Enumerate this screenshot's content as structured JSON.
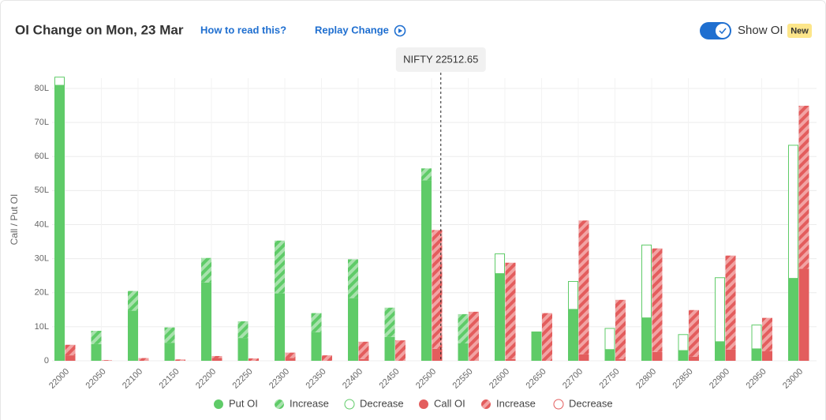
{
  "chart_data": {
    "type": "stacked-bar",
    "title": "OI Change on Mon, 23 Mar",
    "links": [
      "How to read this?",
      "Replay Change"
    ],
    "toggle": "Show OI",
    "badge": "New",
    "spot": {
      "value": 22512.65,
      "label": "NIFTY 22512.65"
    },
    "y_label": "Call / Put OI",
    "categories": [
      "22000",
      "22050",
      "22100",
      "22150",
      "22200",
      "22250",
      "22300",
      "22350",
      "22400",
      "22450",
      "22500",
      "22550",
      "22600",
      "22650",
      "22700",
      "22750",
      "22800",
      "22850",
      "22900",
      "22950",
      "23000"
    ],
    "series": [
      {
        "name": "Put OI",
        "group": "put",
        "style": "solid",
        "color": "#5fcb68",
        "values": [
          80.9,
          4.9,
          14.7,
          5.3,
          23,
          6.7,
          19.8,
          8.4,
          18.4,
          7,
          53,
          5.1,
          25.6,
          8.6,
          15.1,
          3.3,
          12.6,
          3,
          5.6,
          3.5,
          24.2
        ]
      },
      {
        "name": "Increase",
        "group": "put",
        "style": "hatch",
        "color": "#5fcb68",
        "values": [
          0,
          3.9,
          5.8,
          4.5,
          7.2,
          4.9,
          15.5,
          5.6,
          11.4,
          8.6,
          3.5,
          8.6,
          0,
          0,
          0,
          0,
          0,
          0,
          0,
          0,
          0
        ]
      },
      {
        "name": "Decrease",
        "group": "put",
        "style": "outline",
        "color": "#5fcb68",
        "values": [
          2.4,
          0,
          0,
          0,
          0,
          0,
          0,
          0,
          0,
          0,
          0,
          0,
          5.8,
          0,
          8.2,
          6.2,
          21.4,
          4.7,
          18.8,
          7,
          39.1
        ]
      },
      {
        "name": "Call OI",
        "group": "call",
        "style": "solid",
        "color": "#e35d5d",
        "values": [
          1.6,
          0,
          0,
          0,
          0.8,
          0,
          0.8,
          0,
          0.5,
          0,
          3.5,
          0,
          0.5,
          0,
          1.9,
          0.5,
          2.6,
          1.2,
          3.3,
          2.8,
          27
        ]
      },
      {
        "name": "Increase",
        "group": "call",
        "style": "hatch",
        "color": "#e35d5d",
        "values": [
          3.1,
          0.2,
          0.8,
          0.4,
          0.6,
          0.7,
          1.6,
          1.6,
          5.1,
          6,
          34.9,
          14.4,
          28.3,
          14,
          39.3,
          17.4,
          30.4,
          13.7,
          27.6,
          9.8,
          47.9
        ]
      },
      {
        "name": "Decrease",
        "group": "call",
        "style": "outline",
        "color": "#e35d5d",
        "values": [
          0,
          0,
          0,
          0,
          0,
          0,
          0,
          0,
          0,
          0,
          0,
          0,
          0,
          0,
          0,
          0,
          0,
          0,
          0,
          0,
          0
        ]
      }
    ],
    "ylim": [
      0,
      83
    ],
    "yticks": [
      0,
      {
        "value": 10,
        "label": "10L"
      },
      {
        "value": 20,
        "label": "20L"
      },
      {
        "value": 30,
        "label": "30L"
      },
      {
        "value": 40,
        "label": "40L"
      },
      {
        "value": 50,
        "label": "50L"
      },
      {
        "value": 60,
        "label": "60L"
      },
      {
        "value": 70,
        "label": "70L"
      },
      {
        "value": 80,
        "label": "80L"
      }
    ],
    "grid": true
  }
}
